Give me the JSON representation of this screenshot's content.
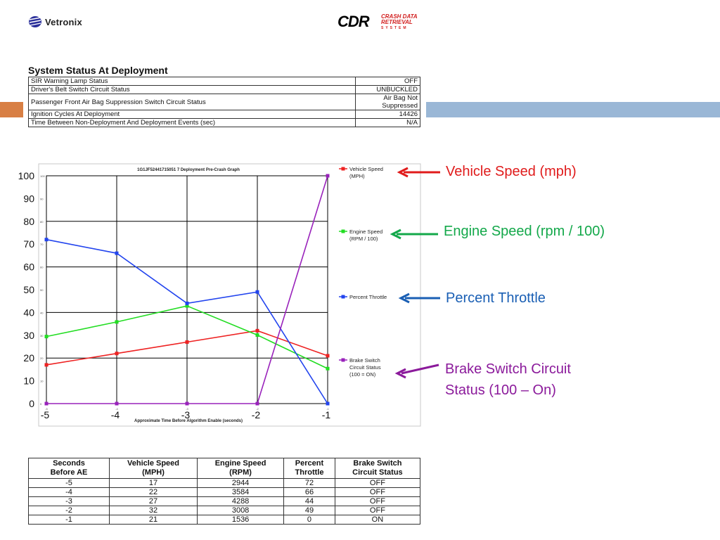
{
  "header": {
    "vetronix_logo_text": "Vetronix",
    "cdr_logo_main": "CDR",
    "cdr_logo_sub_line1": "CRASH DATA",
    "cdr_logo_sub_line2": "RETRIEVAL",
    "cdr_logo_sub_line3": "SYSTEM",
    "accent_left_color": "#d87f44",
    "accent_right_color": "#9ab7d6"
  },
  "status": {
    "title": "System Status At Deployment",
    "rows": [
      {
        "label": "SIR Warning Lamp Status",
        "value": "OFF"
      },
      {
        "label": "Driver's Belt Switch Circuit Status",
        "value": "UNBUCKLED"
      },
      {
        "label": "Passenger Front Air Bag Suppression Switch Circuit Status",
        "value": "Air Bag Not Suppressed"
      },
      {
        "label": "Ignition Cycles At Deployment",
        "value": "14426"
      },
      {
        "label": "Time Between Non-Deployment And Deployment Events (sec)",
        "value": "N/A"
      }
    ]
  },
  "chart_data": {
    "type": "line",
    "title": "1G1JF52441715051 7 Deployment Pre-Crash Graph",
    "xlabel": "Approximate Time Before Algorithm Enable (seconds)",
    "ylabel": "",
    "x": [
      -5,
      -4,
      -3,
      -2,
      -1
    ],
    "x_tick_labels": [
      "-5",
      "-4",
      "-3",
      "-2",
      "-1"
    ],
    "y_tick_labels": [
      "0",
      "10",
      "20",
      "30",
      "40",
      "50",
      "60",
      "70",
      "80",
      "90",
      "100"
    ],
    "ylim": [
      0,
      100
    ],
    "xlim": [
      -5,
      -1
    ],
    "grid": true,
    "legend_position": "right",
    "series": [
      {
        "name": "Vehicle Speed (MPH)",
        "color": "#ee2222",
        "values": [
          17,
          22,
          27,
          32,
          21
        ]
      },
      {
        "name": "Engine Speed (RPM / 100)",
        "color": "#22dd22",
        "values": [
          29.44,
          35.84,
          42.88,
          30.08,
          15.36
        ]
      },
      {
        "name": "Percent Throttle",
        "color": "#2244ee",
        "values": [
          72,
          66,
          44,
          49,
          0
        ]
      },
      {
        "name": "Brake Switch Circuit Status (100 = ON)",
        "color": "#9922bb",
        "values": [
          0,
          0,
          0,
          0,
          100
        ]
      }
    ]
  },
  "annotations": [
    {
      "lines": [
        "Vehicle Speed (mph)"
      ],
      "color": "#e01b1b"
    },
    {
      "lines": [
        "Engine Speed (rpm / 100)"
      ],
      "color": "#13a84a"
    },
    {
      "lines": [
        "Percent Throttle"
      ],
      "color": "#1a5fb4"
    },
    {
      "lines": [
        "Brake Switch Circuit",
        "Status (100 – On)"
      ],
      "color": "#8b1a9b"
    }
  ],
  "data_table": {
    "headers": [
      [
        "Seconds",
        "Before AE"
      ],
      [
        "Vehicle Speed",
        "(MPH)"
      ],
      [
        "Engine Speed",
        "(RPM)"
      ],
      [
        "Percent",
        "Throttle"
      ],
      [
        "Brake Switch",
        "Circuit Status"
      ]
    ],
    "rows": [
      [
        "-5",
        "17",
        "2944",
        "72",
        "OFF"
      ],
      [
        "-4",
        "22",
        "3584",
        "66",
        "OFF"
      ],
      [
        "-3",
        "27",
        "4288",
        "44",
        "OFF"
      ],
      [
        "-2",
        "32",
        "3008",
        "49",
        "OFF"
      ],
      [
        "-1",
        "21",
        "1536",
        "0",
        "ON"
      ]
    ]
  }
}
